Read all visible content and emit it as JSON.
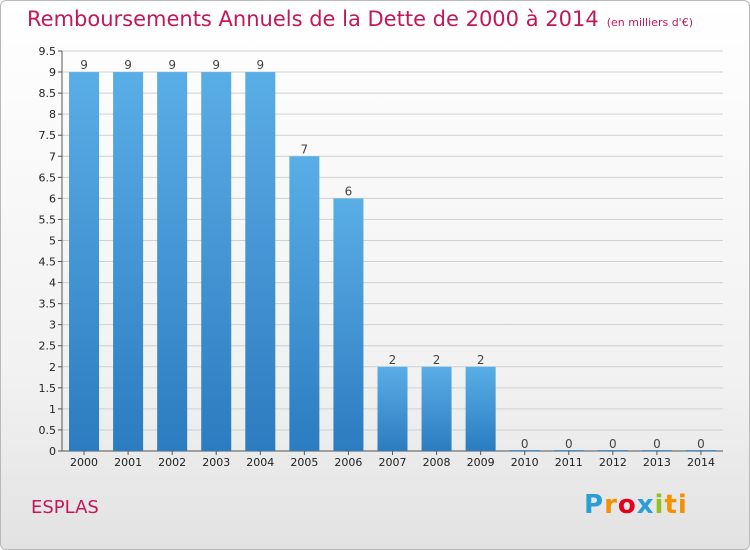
{
  "header": {
    "title": "Remboursements Annuels de la Dette de 2000 à 2014",
    "unit": "(en milliers d'€)"
  },
  "footer": {
    "commune": "ESPLAS",
    "logo": {
      "letters": [
        "P",
        "r",
        "o",
        "x",
        "i",
        "ti"
      ],
      "text": "Proxiti"
    }
  },
  "colors": {
    "title": "#c2185b",
    "bar_top": "#5aaee6",
    "bar_bottom": "#2b7cc0",
    "grid": "#d0d0d0"
  },
  "chart_data": {
    "type": "bar",
    "title": "Remboursements Annuels de la Dette de 2000 à 2014",
    "xlabel": "",
    "ylabel": "",
    "categories": [
      "2000",
      "2001",
      "2002",
      "2003",
      "2004",
      "2005",
      "2006",
      "2007",
      "2008",
      "2009",
      "2010",
      "2011",
      "2012",
      "2013",
      "2014"
    ],
    "values": [
      9,
      9,
      9,
      9,
      9,
      7,
      6,
      2,
      2,
      2,
      0,
      0,
      0,
      0,
      0
    ],
    "ylim": [
      0,
      9.5
    ],
    "yticks": [
      "0",
      "0.5",
      "1",
      "1.5",
      "2",
      "2.5",
      "3",
      "3.5",
      "4",
      "4.5",
      "5",
      "5.5",
      "6",
      "6.5",
      "7",
      "7.5",
      "8",
      "8.5",
      "9",
      "9.5"
    ],
    "grid": true
  }
}
